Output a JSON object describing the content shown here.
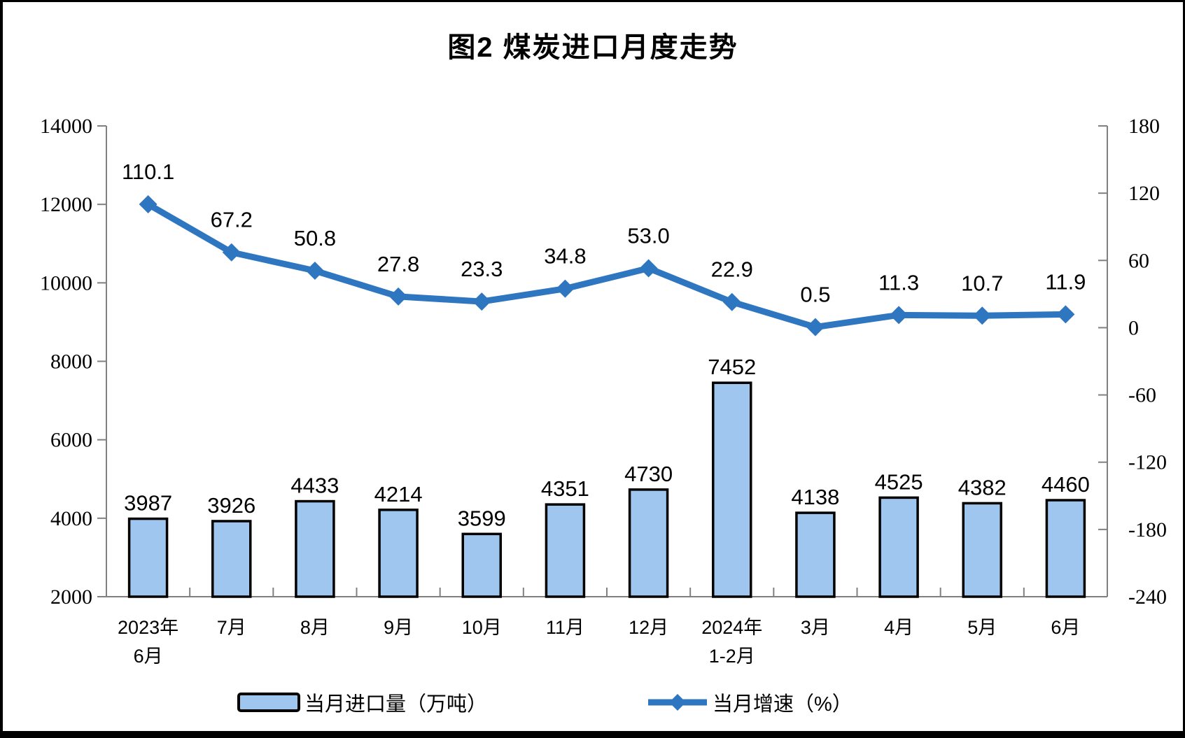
{
  "chart_data": {
    "type": "bar",
    "combo": "bar+line",
    "title": "图2 煤炭进口月度走势",
    "categories": [
      [
        "2023年",
        "6月"
      ],
      [
        "7月"
      ],
      [
        "8月"
      ],
      [
        "9月"
      ],
      [
        "10月"
      ],
      [
        "11月"
      ],
      [
        "12月"
      ],
      [
        "2024年",
        "1-2月"
      ],
      [
        "3月"
      ],
      [
        "4月"
      ],
      [
        "5月"
      ],
      [
        "6月"
      ]
    ],
    "series": [
      {
        "name": "当月进口量（万吨）",
        "type": "bar",
        "axis": "left",
        "values": [
          3987,
          3926,
          4433,
          4214,
          3599,
          4351,
          4730,
          7452,
          4138,
          4525,
          4382,
          4460
        ]
      },
      {
        "name": "当月增速（%）",
        "type": "line",
        "axis": "right",
        "values": [
          110.1,
          67.2,
          50.8,
          27.8,
          23.3,
          34.8,
          53.0,
          22.9,
          0.5,
          11.3,
          10.7,
          11.9
        ]
      }
    ],
    "left_axis": {
      "min": 2000,
      "max": 14000,
      "step": 2000,
      "ticks": [
        2000,
        4000,
        6000,
        8000,
        10000,
        12000,
        14000
      ]
    },
    "right_axis": {
      "min": -240,
      "max": 180,
      "step": 60,
      "ticks": [
        -240,
        -180,
        -120,
        -60,
        0,
        60,
        120,
        180
      ]
    },
    "grid": "off",
    "legend_position": "bottom",
    "colors": {
      "bar_fill": "#9EC6EF",
      "bar_border": "#000000",
      "line": "#2F76C0",
      "axis": "#808080",
      "text": "#000000"
    }
  }
}
